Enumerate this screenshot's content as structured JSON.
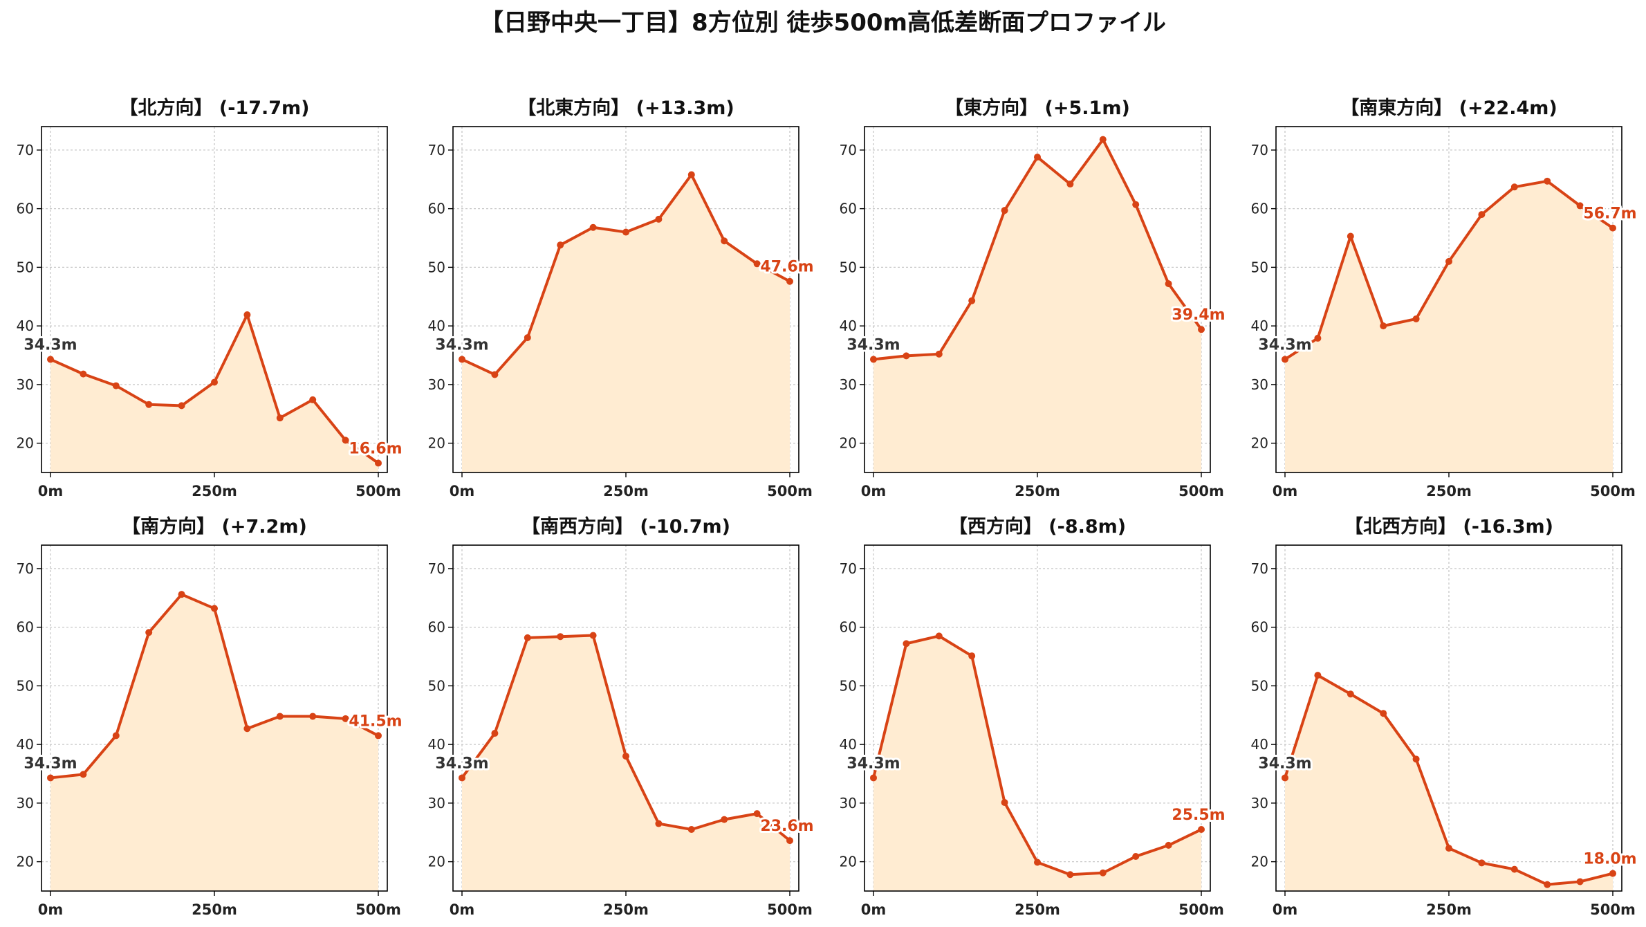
{
  "title": "【日野中央一丁目】8方位別 徒歩500m高低差断面プロファイル",
  "colors": {
    "line": "#d84315",
    "fill": "#ffecd2",
    "start_label": "#333333",
    "end_label": "#d84315"
  },
  "chart_data": [
    {
      "type": "area",
      "title": "【北方向】 (-17.7m)",
      "start_label": "34.3m",
      "end_label": "16.6m",
      "x": [
        0,
        50,
        100,
        150,
        200,
        250,
        300,
        350,
        400,
        450,
        500
      ],
      "y": [
        34.3,
        31.8,
        29.8,
        26.6,
        26.4,
        30.4,
        41.9,
        24.3,
        27.4,
        20.5,
        16.6
      ],
      "xticks": [
        "0m",
        "250m",
        "500m"
      ],
      "yticks": [
        20,
        30,
        40,
        50,
        60,
        70
      ],
      "ylim": [
        15,
        74
      ],
      "grid": true
    },
    {
      "type": "area",
      "title": "【北東方向】 (+13.3m)",
      "start_label": "34.3m",
      "end_label": "47.6m",
      "x": [
        0,
        50,
        100,
        150,
        200,
        250,
        300,
        350,
        400,
        450,
        500
      ],
      "y": [
        34.3,
        31.7,
        38.0,
        53.8,
        56.8,
        56.0,
        58.2,
        65.8,
        54.5,
        50.6,
        47.6
      ],
      "xticks": [
        "0m",
        "250m",
        "500m"
      ],
      "yticks": [
        20,
        30,
        40,
        50,
        60,
        70
      ],
      "ylim": [
        15,
        74
      ],
      "grid": true
    },
    {
      "type": "area",
      "title": "【東方向】 (+5.1m)",
      "start_label": "34.3m",
      "end_label": "39.4m",
      "x": [
        0,
        50,
        100,
        150,
        200,
        250,
        300,
        350,
        400,
        450,
        500
      ],
      "y": [
        34.3,
        34.9,
        35.2,
        44.3,
        59.7,
        68.8,
        64.2,
        71.8,
        60.7,
        47.2,
        39.4
      ],
      "xticks": [
        "0m",
        "250m",
        "500m"
      ],
      "yticks": [
        20,
        30,
        40,
        50,
        60,
        70
      ],
      "ylim": [
        15,
        74
      ],
      "grid": true
    },
    {
      "type": "area",
      "title": "【南東方向】 (+22.4m)",
      "start_label": "34.3m",
      "end_label": "56.7m",
      "x": [
        0,
        50,
        100,
        150,
        200,
        250,
        300,
        350,
        400,
        450,
        500
      ],
      "y": [
        34.3,
        37.9,
        55.3,
        40.0,
        41.2,
        51.0,
        59.0,
        63.7,
        64.7,
        60.5,
        56.7
      ],
      "xticks": [
        "0m",
        "250m",
        "500m"
      ],
      "yticks": [
        20,
        30,
        40,
        50,
        60,
        70
      ],
      "ylim": [
        15,
        74
      ],
      "grid": true
    },
    {
      "type": "area",
      "title": "【南方向】 (+7.2m)",
      "start_label": "34.3m",
      "end_label": "41.5m",
      "x": [
        0,
        50,
        100,
        150,
        200,
        250,
        300,
        350,
        400,
        450,
        500
      ],
      "y": [
        34.3,
        34.9,
        41.5,
        59.1,
        65.6,
        63.2,
        42.7,
        44.8,
        44.8,
        44.4,
        41.5
      ],
      "xticks": [
        "0m",
        "250m",
        "500m"
      ],
      "yticks": [
        20,
        30,
        40,
        50,
        60,
        70
      ],
      "ylim": [
        15,
        74
      ],
      "grid": true
    },
    {
      "type": "area",
      "title": "【南西方向】 (-10.7m)",
      "start_label": "34.3m",
      "end_label": "23.6m",
      "x": [
        0,
        50,
        100,
        150,
        200,
        250,
        300,
        350,
        400,
        450,
        500
      ],
      "y": [
        34.3,
        41.9,
        58.2,
        58.4,
        58.6,
        38.0,
        26.5,
        25.5,
        27.2,
        28.2,
        23.6
      ],
      "xticks": [
        "0m",
        "250m",
        "500m"
      ],
      "yticks": [
        20,
        30,
        40,
        50,
        60,
        70
      ],
      "ylim": [
        15,
        74
      ],
      "grid": true
    },
    {
      "type": "area",
      "title": "【西方向】 (-8.8m)",
      "start_label": "34.3m",
      "end_label": "25.5m",
      "x": [
        0,
        50,
        100,
        150,
        200,
        250,
        300,
        350,
        400,
        450,
        500
      ],
      "y": [
        34.3,
        57.2,
        58.5,
        55.1,
        30.1,
        19.9,
        17.8,
        18.1,
        20.9,
        22.8,
        25.5
      ],
      "xticks": [
        "0m",
        "250m",
        "500m"
      ],
      "yticks": [
        20,
        30,
        40,
        50,
        60,
        70
      ],
      "ylim": [
        15,
        74
      ],
      "grid": true
    },
    {
      "type": "area",
      "title": "【北西方向】 (-16.3m)",
      "start_label": "34.3m",
      "end_label": "18.0m",
      "x": [
        0,
        50,
        100,
        150,
        200,
        250,
        300,
        350,
        400,
        450,
        500
      ],
      "y": [
        34.3,
        51.8,
        48.6,
        45.3,
        37.5,
        22.3,
        19.8,
        18.7,
        16.1,
        16.6,
        18.0
      ],
      "xticks": [
        "0m",
        "250m",
        "500m"
      ],
      "yticks": [
        20,
        30,
        40,
        50,
        60,
        70
      ],
      "ylim": [
        15,
        74
      ],
      "grid": true
    }
  ]
}
